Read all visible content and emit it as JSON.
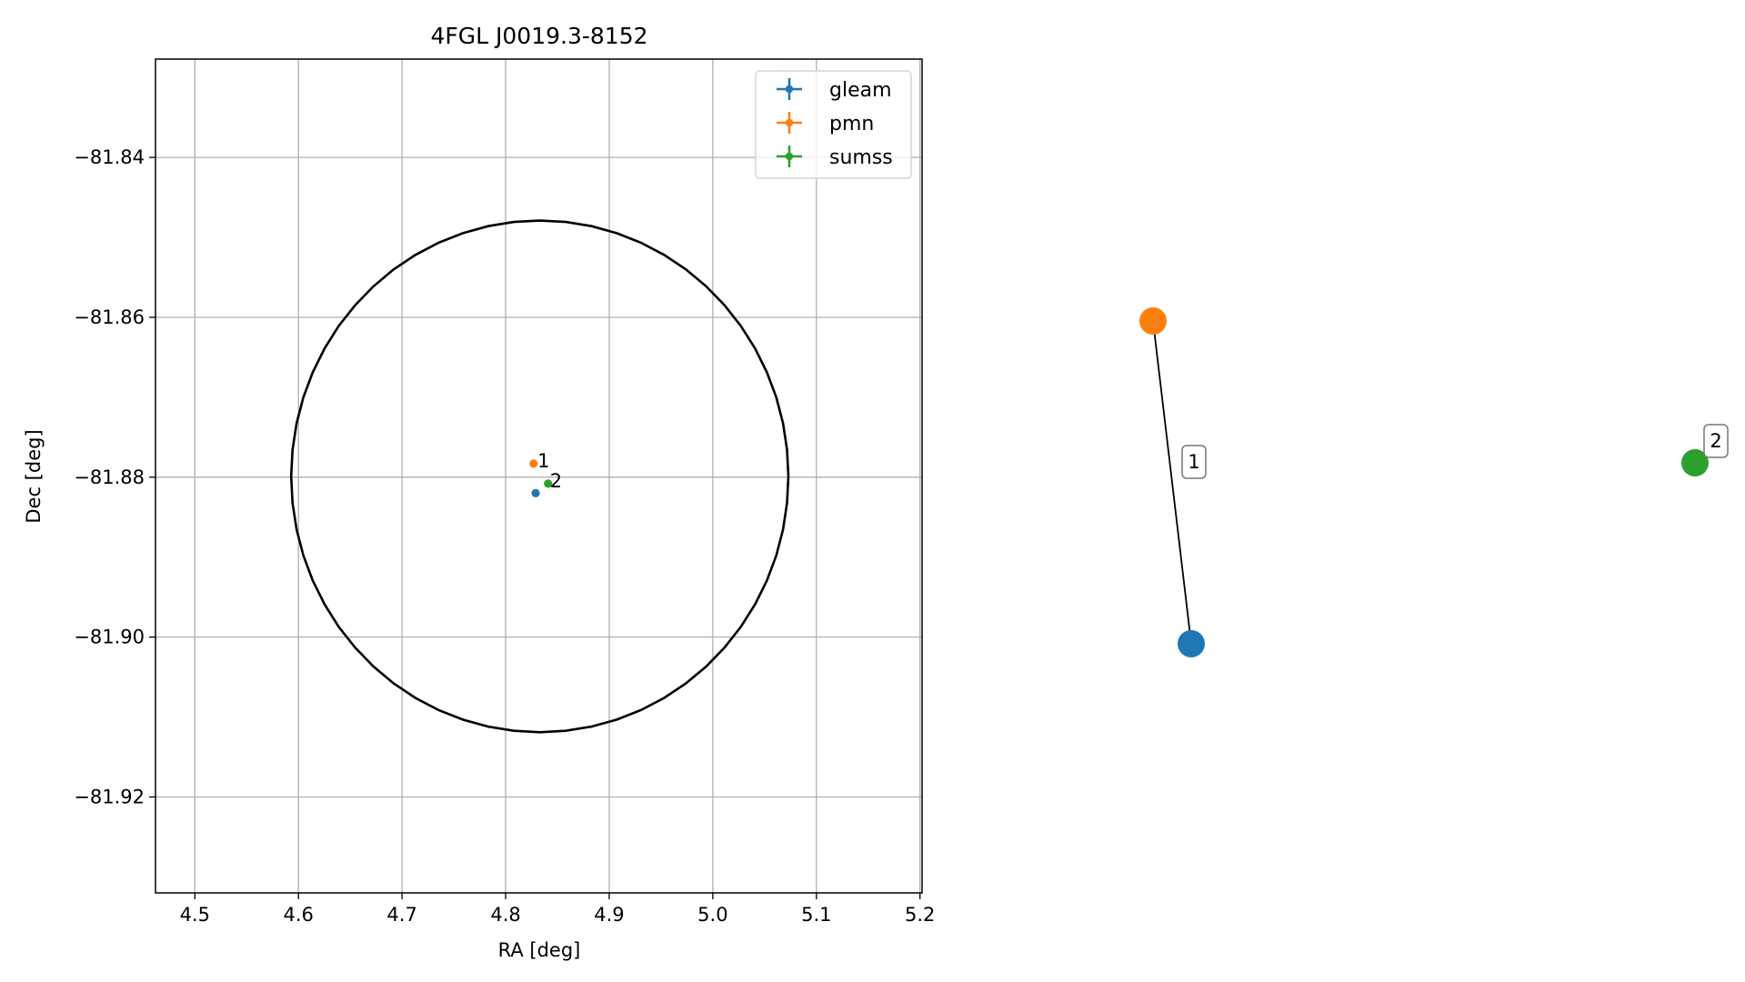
{
  "chart_data": [
    {
      "type": "scatter",
      "title": "4FGL J0019.3-8152",
      "xlabel": "RA [deg]",
      "ylabel": "Dec [deg]",
      "xlim": [
        4.462,
        5.202
      ],
      "ylim": [
        -81.932,
        -81.8277
      ],
      "xticks": [
        4.5,
        4.6,
        4.7,
        4.8,
        4.9,
        5.0,
        5.1,
        5.2
      ],
      "xtick_labels": [
        "4.5",
        "4.6",
        "4.7",
        "4.8",
        "4.9",
        "5.0",
        "5.1",
        "5.2"
      ],
      "yticks": [
        -81.84,
        -81.86,
        -81.88,
        -81.9,
        -81.92
      ],
      "ytick_labels": [
        "−81.84",
        "−81.86",
        "−81.88",
        "−81.90",
        "−81.92"
      ],
      "grid": true,
      "legend_position": "top-right",
      "series": [
        {
          "name": "gleam",
          "color": "#1f77b4",
          "x": [
            4.829
          ],
          "y": [
            -81.882
          ]
        },
        {
          "name": "pmn",
          "color": "#ff7f0e",
          "x": [
            4.827
          ],
          "y": [
            -81.8783
          ]
        },
        {
          "name": "sumss",
          "color": "#2ca02c",
          "x": [
            4.841
          ],
          "y": [
            -81.8808
          ]
        }
      ],
      "point_labels": [
        {
          "text": "1",
          "x": 4.829,
          "y": -81.8783
        },
        {
          "text": "2",
          "x": 4.841,
          "y": -81.8808
        }
      ],
      "error_ellipse": {
        "center_ra": 4.833,
        "center_dec": -81.8799,
        "radius_ra": 0.24,
        "radius_dec": 0.032,
        "color": "#000000"
      }
    },
    {
      "type": "network",
      "nodes": [
        {
          "id": "pmn",
          "color": "#ff7f0e"
        },
        {
          "id": "gleam",
          "color": "#1f77b4"
        },
        {
          "id": "sumss",
          "color": "#2ca02c"
        }
      ],
      "edges": [
        {
          "from": "pmn",
          "to": "gleam",
          "label": "1"
        }
      ],
      "node_labels": [
        {
          "node": "sumss",
          "label": "2"
        }
      ]
    }
  ]
}
